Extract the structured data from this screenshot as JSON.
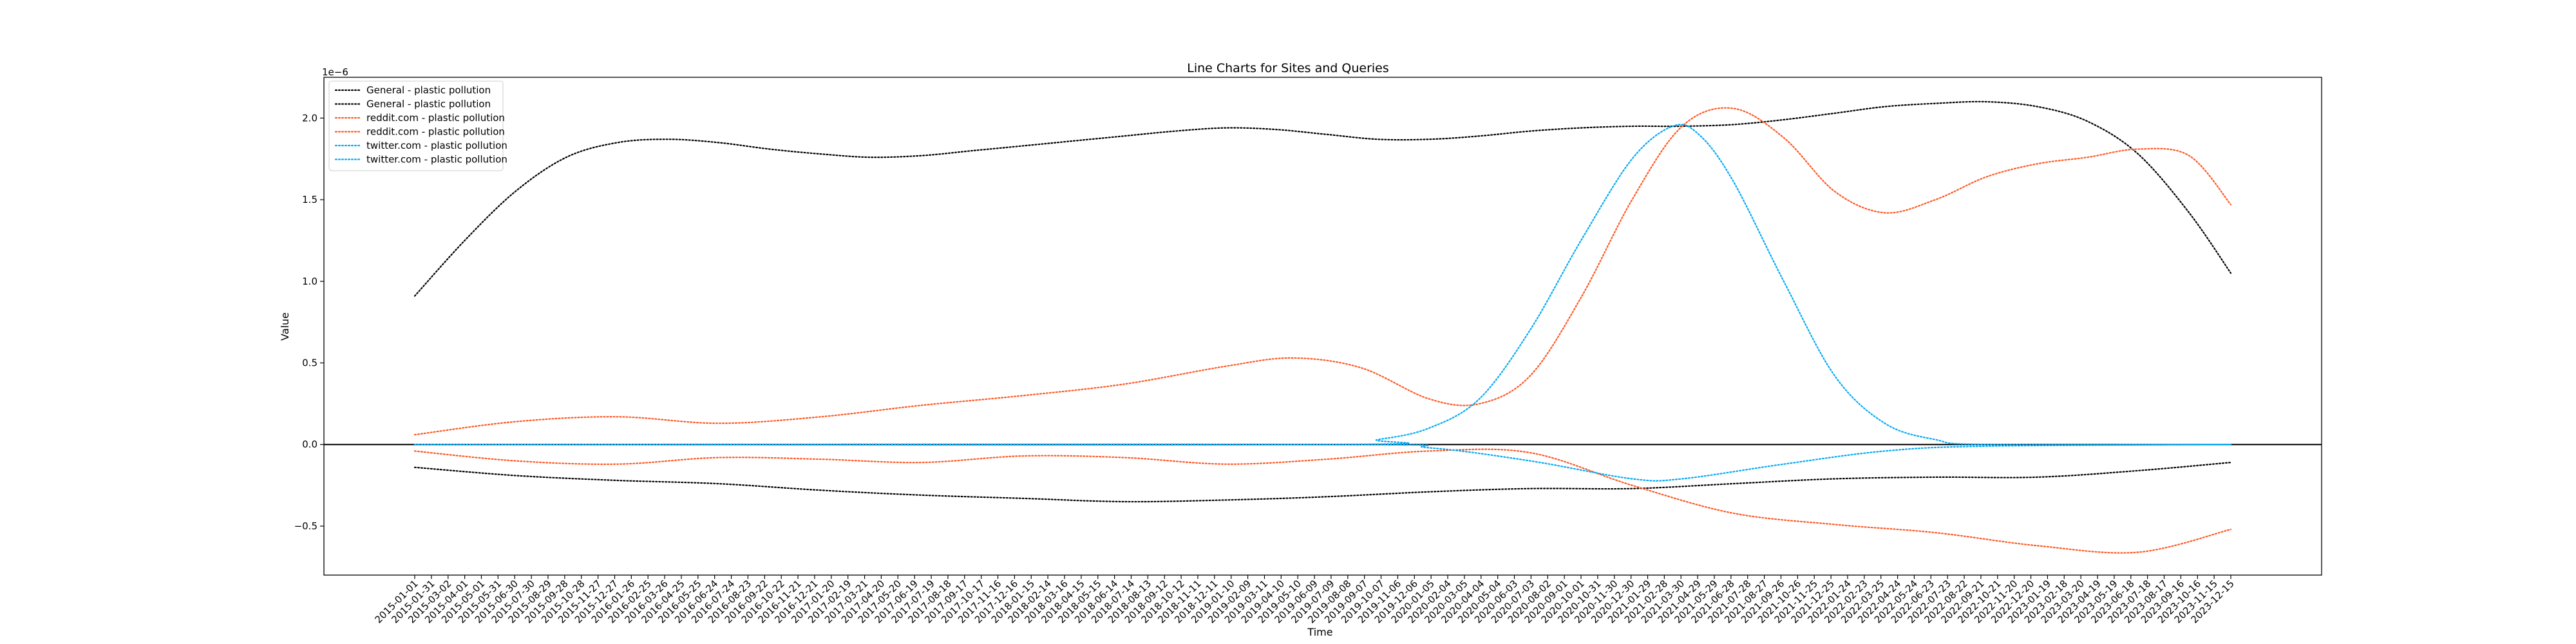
{
  "chart_data": {
    "type": "line",
    "title": "Line Charts for Sites and Queries",
    "xlabel": "Time",
    "ylabel": "Value",
    "y_offset_label": "1e−6",
    "ylim": [
      -0.8,
      2.25
    ],
    "yticks": [
      -0.5,
      0.0,
      0.5,
      1.0,
      1.5,
      2.0
    ],
    "ytick_labels": [
      "−0.5",
      "0.0",
      "0.5",
      "1.0",
      "1.5",
      "2.0"
    ],
    "zero_line": true,
    "grid": false,
    "legend_position": "top-left",
    "x_ticks": [
      "2015-01-01",
      "2015-01-31",
      "2015-03-02",
      "2015-04-01",
      "2015-05-01",
      "2015-05-31",
      "2015-06-30",
      "2015-07-30",
      "2015-08-29",
      "2015-09-28",
      "2015-10-28",
      "2015-11-27",
      "2015-12-27",
      "2016-01-26",
      "2016-02-25",
      "2016-03-26",
      "2016-04-25",
      "2016-05-25",
      "2016-06-24",
      "2016-07-24",
      "2016-08-23",
      "2016-09-22",
      "2016-10-22",
      "2016-11-21",
      "2016-12-21",
      "2017-01-20",
      "2017-02-19",
      "2017-03-21",
      "2017-04-20",
      "2017-05-20",
      "2017-06-19",
      "2017-07-19",
      "2017-08-18",
      "2017-09-17",
      "2017-10-17",
      "2017-11-16",
      "2017-12-16",
      "2018-01-15",
      "2018-02-14",
      "2018-03-16",
      "2018-04-15",
      "2018-05-15",
      "2018-06-14",
      "2018-07-14",
      "2018-08-13",
      "2018-09-12",
      "2018-10-12",
      "2018-11-11",
      "2018-12-11",
      "2019-01-10",
      "2019-02-09",
      "2019-03-11",
      "2019-04-10",
      "2019-05-10",
      "2019-06-09",
      "2019-07-09",
      "2019-08-08",
      "2019-09-07",
      "2019-10-07",
      "2019-11-06",
      "2019-12-06",
      "2020-01-05",
      "2020-02-04",
      "2020-03-05",
      "2020-04-04",
      "2020-05-04",
      "2020-06-03",
      "2020-07-03",
      "2020-08-02",
      "2020-09-01",
      "2020-10-01",
      "2020-10-31",
      "2020-11-30",
      "2020-12-30",
      "2021-01-29",
      "2021-02-28",
      "2021-03-30",
      "2021-04-29",
      "2021-05-29",
      "2021-06-28",
      "2021-07-28",
      "2021-08-27",
      "2021-09-26",
      "2021-10-26",
      "2021-11-25",
      "2021-12-25",
      "2022-01-24",
      "2022-02-23",
      "2022-03-25",
      "2022-04-24",
      "2022-05-24",
      "2022-06-23",
      "2022-07-23",
      "2022-08-22",
      "2022-09-21",
      "2022-10-21",
      "2022-11-20",
      "2022-12-20",
      "2023-01-19",
      "2023-02-18",
      "2023-03-20",
      "2023-04-19",
      "2023-05-19",
      "2023-06-18",
      "2023-07-18",
      "2023-08-17",
      "2023-09-16",
      "2023-10-16",
      "2023-11-15",
      "2023-12-15"
    ],
    "x_start": "2015-01-01",
    "x_end": "2023-12-15",
    "series": [
      {
        "name": "General - plastic pollution",
        "color": "#000000",
        "points": [
          [
            "2015-01-01",
            0.91
          ],
          [
            "2015-04-01",
            1.25
          ],
          [
            "2015-07-01",
            1.55
          ],
          [
            "2015-10-01",
            1.76
          ],
          [
            "2016-01-01",
            1.85
          ],
          [
            "2016-04-01",
            1.87
          ],
          [
            "2016-07-01",
            1.85
          ],
          [
            "2016-10-01",
            1.81
          ],
          [
            "2017-01-01",
            1.78
          ],
          [
            "2017-04-01",
            1.76
          ],
          [
            "2017-07-01",
            1.77
          ],
          [
            "2017-10-01",
            1.8
          ],
          [
            "2018-01-01",
            1.83
          ],
          [
            "2018-04-01",
            1.86
          ],
          [
            "2018-07-01",
            1.89
          ],
          [
            "2018-10-01",
            1.92
          ],
          [
            "2019-01-01",
            1.94
          ],
          [
            "2019-04-01",
            1.93
          ],
          [
            "2019-07-01",
            1.9
          ],
          [
            "2019-10-01",
            1.87
          ],
          [
            "2020-01-01",
            1.87
          ],
          [
            "2020-04-01",
            1.89
          ],
          [
            "2020-07-01",
            1.92
          ],
          [
            "2020-10-01",
            1.94
          ],
          [
            "2021-01-01",
            1.95
          ],
          [
            "2021-04-01",
            1.95
          ],
          [
            "2021-07-01",
            1.96
          ],
          [
            "2021-10-01",
            1.99
          ],
          [
            "2022-01-01",
            2.03
          ],
          [
            "2022-04-01",
            2.07
          ],
          [
            "2022-07-01",
            2.09
          ],
          [
            "2022-10-01",
            2.1
          ],
          [
            "2023-01-01",
            2.07
          ],
          [
            "2023-04-01",
            1.98
          ],
          [
            "2023-07-01",
            1.78
          ],
          [
            "2023-10-01",
            1.42
          ],
          [
            "2023-12-15",
            1.05
          ]
        ]
      },
      {
        "name": "General - plastic pollution",
        "color": "#000000",
        "points": [
          [
            "2015-01-01",
            -0.14
          ],
          [
            "2015-07-01",
            -0.19
          ],
          [
            "2016-01-01",
            -0.22
          ],
          [
            "2016-07-01",
            -0.24
          ],
          [
            "2017-01-01",
            -0.28
          ],
          [
            "2017-07-01",
            -0.31
          ],
          [
            "2018-01-01",
            -0.33
          ],
          [
            "2018-07-01",
            -0.35
          ],
          [
            "2019-01-01",
            -0.34
          ],
          [
            "2019-07-01",
            -0.32
          ],
          [
            "2020-01-01",
            -0.29
          ],
          [
            "2020-07-01",
            -0.27
          ],
          [
            "2021-01-01",
            -0.27
          ],
          [
            "2021-07-01",
            -0.24
          ],
          [
            "2022-01-01",
            -0.21
          ],
          [
            "2022-07-01",
            -0.2
          ],
          [
            "2023-01-01",
            -0.2
          ],
          [
            "2023-07-01",
            -0.16
          ],
          [
            "2023-12-15",
            -0.11
          ]
        ]
      },
      {
        "name": "reddit.com - plastic pollution",
        "color": "#ff5722",
        "points": [
          [
            "2015-01-01",
            0.06
          ],
          [
            "2015-07-01",
            0.14
          ],
          [
            "2016-01-01",
            0.17
          ],
          [
            "2016-07-01",
            0.13
          ],
          [
            "2017-01-01",
            0.17
          ],
          [
            "2017-07-01",
            0.24
          ],
          [
            "2018-01-01",
            0.3
          ],
          [
            "2018-07-01",
            0.37
          ],
          [
            "2019-01-01",
            0.48
          ],
          [
            "2019-05-01",
            0.53
          ],
          [
            "2019-09-01",
            0.47
          ],
          [
            "2020-01-01",
            0.28
          ],
          [
            "2020-04-01",
            0.25
          ],
          [
            "2020-07-01",
            0.42
          ],
          [
            "2020-10-01",
            0.9
          ],
          [
            "2021-01-01",
            1.5
          ],
          [
            "2021-04-01",
            1.95
          ],
          [
            "2021-07-01",
            2.06
          ],
          [
            "2021-10-01",
            1.88
          ],
          [
            "2022-01-01",
            1.55
          ],
          [
            "2022-04-01",
            1.42
          ],
          [
            "2022-07-01",
            1.5
          ],
          [
            "2022-10-01",
            1.64
          ],
          [
            "2023-01-01",
            1.72
          ],
          [
            "2023-04-01",
            1.76
          ],
          [
            "2023-07-01",
            1.81
          ],
          [
            "2023-10-01",
            1.77
          ],
          [
            "2023-12-15",
            1.47
          ]
        ]
      },
      {
        "name": "reddit.com - plastic pollution",
        "color": "#ff5722",
        "points": [
          [
            "2015-01-01",
            -0.04
          ],
          [
            "2015-07-01",
            -0.1
          ],
          [
            "2016-01-01",
            -0.12
          ],
          [
            "2016-07-01",
            -0.08
          ],
          [
            "2017-01-01",
            -0.09
          ],
          [
            "2017-07-01",
            -0.11
          ],
          [
            "2018-01-01",
            -0.07
          ],
          [
            "2018-07-01",
            -0.08
          ],
          [
            "2019-01-01",
            -0.12
          ],
          [
            "2019-07-01",
            -0.09
          ],
          [
            "2020-01-01",
            -0.04
          ],
          [
            "2020-07-01",
            -0.05
          ],
          [
            "2021-01-01",
            -0.25
          ],
          [
            "2021-07-01",
            -0.42
          ],
          [
            "2022-01-01",
            -0.49
          ],
          [
            "2022-07-01",
            -0.54
          ],
          [
            "2023-01-01",
            -0.62
          ],
          [
            "2023-07-01",
            -0.66
          ],
          [
            "2023-12-15",
            -0.52
          ]
        ]
      },
      {
        "name": "twitter.com - plastic pollution",
        "color": "#03a9f4",
        "points": [
          [
            "2015-01-01",
            0.0
          ],
          [
            "2019-07-01",
            0.0
          ],
          [
            "2019-10-01",
            0.03
          ],
          [
            "2020-01-01",
            0.1
          ],
          [
            "2020-04-01",
            0.28
          ],
          [
            "2020-07-01",
            0.7
          ],
          [
            "2020-10-01",
            1.25
          ],
          [
            "2021-01-01",
            1.75
          ],
          [
            "2021-03-15",
            1.95
          ],
          [
            "2021-05-01",
            1.9
          ],
          [
            "2021-07-01",
            1.62
          ],
          [
            "2021-10-01",
            1.0
          ],
          [
            "2022-01-01",
            0.42
          ],
          [
            "2022-04-01",
            0.13
          ],
          [
            "2022-07-01",
            0.03
          ],
          [
            "2022-10-01",
            0.0
          ],
          [
            "2023-12-15",
            0.0
          ]
        ]
      },
      {
        "name": "twitter.com - plastic pollution",
        "color": "#03a9f4",
        "points": [
          [
            "2015-01-01",
            0.0
          ],
          [
            "2019-07-01",
            0.0
          ],
          [
            "2020-01-01",
            -0.02
          ],
          [
            "2020-07-01",
            -0.1
          ],
          [
            "2021-01-01",
            -0.21
          ],
          [
            "2021-04-01",
            -0.21
          ],
          [
            "2021-10-01",
            -0.12
          ],
          [
            "2022-04-01",
            -0.04
          ],
          [
            "2022-10-01",
            -0.01
          ],
          [
            "2023-12-15",
            0.0
          ]
        ]
      }
    ]
  }
}
